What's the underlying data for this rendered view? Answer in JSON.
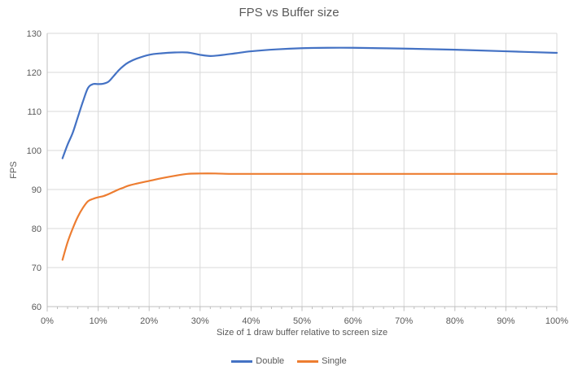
{
  "chart_data": {
    "type": "line",
    "title": "FPS vs Buffer size",
    "xlabel": "Size of 1 draw buffer relative to screen size",
    "ylabel": "FPS",
    "xlim": [
      0,
      100
    ],
    "ylim": [
      60,
      130
    ],
    "x_tick_labels": [
      "0%",
      "10%",
      "20%",
      "30%",
      "40%",
      "50%",
      "60%",
      "70%",
      "80%",
      "90%",
      "100%"
    ],
    "y_tick_labels": [
      "60",
      "70",
      "80",
      "90",
      "100",
      "110",
      "120",
      "130"
    ],
    "x_tick_step": 10,
    "x_minor_tick_step": 2,
    "y_tick_step": 10,
    "grid": true,
    "legend_position": "bottom",
    "colors": {
      "grid": "#D9D9D9",
      "axis": "#BFBFBF",
      "text": "#595959",
      "title": "#595959"
    },
    "series": [
      {
        "name": "Double",
        "color": "#4472C4",
        "x": [
          3,
          4,
          5,
          6,
          7,
          8,
          9,
          10,
          11,
          12,
          13,
          14,
          15,
          16,
          17.5,
          20,
          22.5,
          25,
          27.5,
          30,
          32,
          34,
          37,
          40,
          45,
          50,
          55,
          60,
          65,
          70,
          80,
          90,
          100
        ],
        "y": [
          98,
          101.5,
          104.5,
          108.5,
          112.5,
          116,
          117,
          117,
          117.1,
          117.6,
          119,
          120.5,
          121.7,
          122.6,
          123.5,
          124.5,
          124.9,
          125.1,
          125.1,
          124.5,
          124.2,
          124.4,
          124.9,
          125.4,
          125.9,
          126.2,
          126.3,
          126.3,
          126.2,
          126.1,
          125.8,
          125.4,
          125
        ]
      },
      {
        "name": "Single",
        "color": "#ED7D31",
        "x": [
          3,
          4,
          5,
          6,
          7,
          8,
          9,
          10,
          11,
          12,
          13,
          14,
          15,
          16,
          17.5,
          20,
          22.5,
          25,
          27.5,
          30,
          33,
          36,
          40,
          45,
          50,
          60,
          70,
          80,
          90,
          100
        ],
        "y": [
          72,
          76.5,
          80,
          83,
          85.3,
          87,
          87.6,
          88,
          88.3,
          88.8,
          89.4,
          90,
          90.5,
          91,
          91.5,
          92.2,
          92.9,
          93.5,
          94,
          94.1,
          94.1,
          94,
          94,
          94,
          94,
          94,
          94,
          94,
          94,
          94
        ]
      }
    ]
  }
}
